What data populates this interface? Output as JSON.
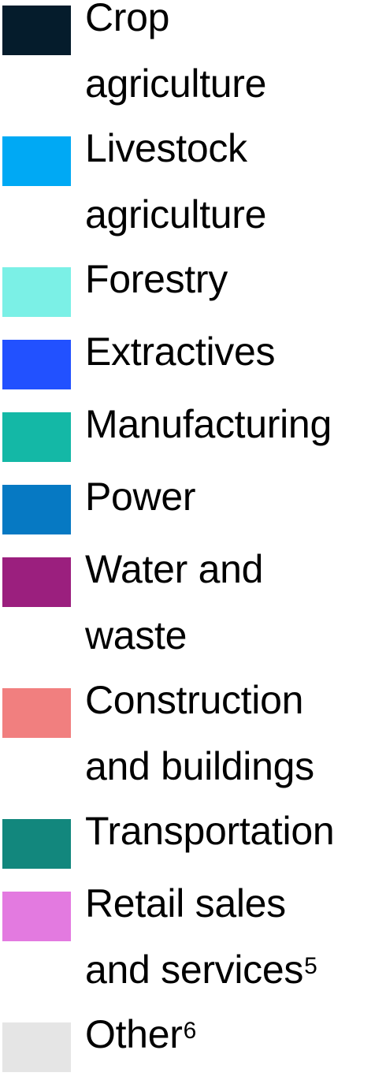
{
  "chart_data": {
    "type": "legend",
    "items": [
      {
        "lines": [
          "Crop",
          "agriculture"
        ],
        "sup": "",
        "color": "#051c2c"
      },
      {
        "lines": [
          "Livestock",
          "agriculture"
        ],
        "sup": "",
        "color": "#00a9f4"
      },
      {
        "lines": [
          "Forestry"
        ],
        "sup": "",
        "color": "#7bf0e6"
      },
      {
        "lines": [
          "Extractives"
        ],
        "sup": "",
        "color": "#2251ff"
      },
      {
        "lines": [
          "Manufacturing"
        ],
        "sup": "",
        "color": "#14b8a6"
      },
      {
        "lines": [
          "Power"
        ],
        "sup": "",
        "color": "#0679c3"
      },
      {
        "lines": [
          "Water and",
          "waste"
        ],
        "sup": "",
        "color": "#9b1f7e"
      },
      {
        "lines": [
          "Construction",
          "and buildings"
        ],
        "sup": "",
        "color": "#f17f7f"
      },
      {
        "lines": [
          "Transportation"
        ],
        "sup": "",
        "color": "#12877d"
      },
      {
        "lines": [
          "Retail sales",
          "and services"
        ],
        "sup": "5",
        "color": "#e37ae0"
      },
      {
        "lines": [
          "Other"
        ],
        "sup": "6",
        "color": "#e5e5e5"
      }
    ]
  }
}
